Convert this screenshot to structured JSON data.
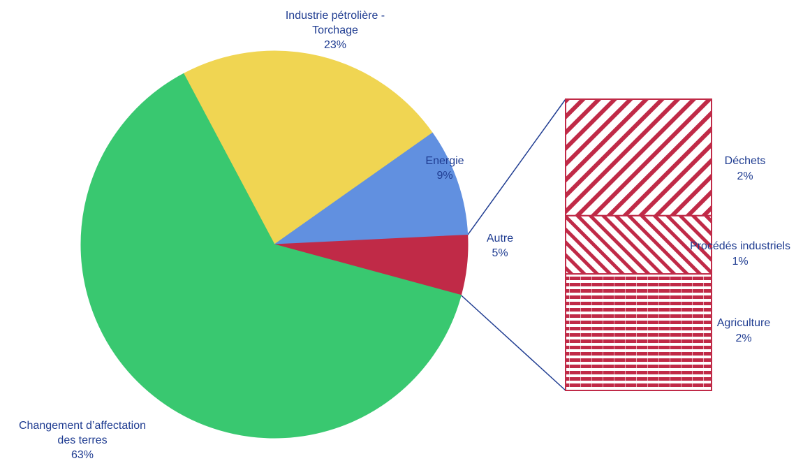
{
  "chart_data": {
    "type": "pie",
    "subtype": "bar-of-pie",
    "slices": [
      {
        "label_lines": [
          "Industrie pétrolière -",
          "Torchage"
        ],
        "pct_label": "23%",
        "value": 23,
        "color": "#f0d552"
      },
      {
        "label_lines": [
          "Energie"
        ],
        "pct_label": "9%",
        "value": 9,
        "color": "#6190e0"
      },
      {
        "label_lines": [
          "Autre"
        ],
        "pct_label": "5%",
        "value": 5,
        "color": "#c02a47"
      },
      {
        "label_lines": [
          "Changement d’affectation",
          "des terres"
        ],
        "pct_label": "63%",
        "value": 63,
        "color": "#39c870"
      }
    ],
    "breakdown": {
      "of": "Autre",
      "color": "#c02a47",
      "items": [
        {
          "label_lines": [
            "Déchets"
          ],
          "pct_label": "2%",
          "value": 2,
          "pattern": "diagonal-wide"
        },
        {
          "label_lines": [
            "Procédés industriels"
          ],
          "pct_label": "1%",
          "value": 1,
          "pattern": "diagonal-narrow"
        },
        {
          "label_lines": [
            "Agriculture"
          ],
          "pct_label": "2%",
          "value": 2,
          "pattern": "horizontal"
        }
      ]
    },
    "label_color": "#1f3c91",
    "connector_color": "#1f3c91"
  }
}
